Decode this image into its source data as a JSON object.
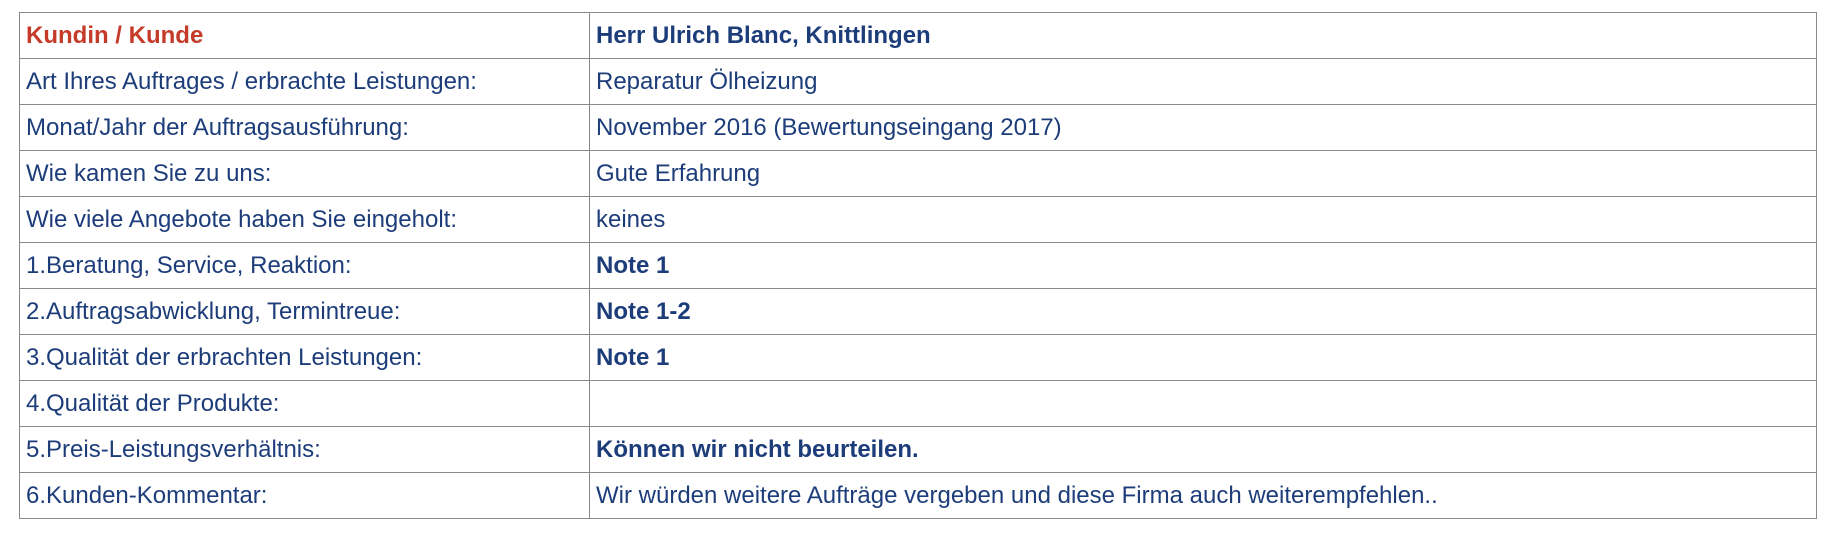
{
  "header": {
    "label": "Kundin / Kunde",
    "value": "Herr Ulrich Blanc, Knittlingen"
  },
  "rows": [
    {
      "label": "Art Ihres Auftrages / erbrachte Leistungen:",
      "value": "Reparatur Ölheizung"
    },
    {
      "label": "Monat/Jahr der Auftragsausführung:",
      "value": "November 2016  (Bewertungseingang 2017)"
    },
    {
      "label": "Wie kamen Sie zu uns:",
      "value": "Gute Erfahrung"
    },
    {
      "label": "Wie viele Angebote haben Sie eingeholt:",
      "value": "keines"
    },
    {
      "label": "1.Beratung, Service, Reaktion:",
      "value": "Note 1"
    },
    {
      "label": "2.Auftragsabwicklung, Termintreue:",
      "value": "Note 1-2"
    },
    {
      "label": "3.Qualität der erbrachten Leistungen:",
      "value": "Note 1"
    },
    {
      "label": "4.Qualität der Produkte:",
      "value": ""
    },
    {
      "label": "5.Preis-Leistungsverhältnis:",
      "value": "Können wir nicht beurteilen."
    },
    {
      "label": "6.Kunden-Kommentar:",
      "value": "Wir würden weitere Aufträge vergeben und diese Firma auch weiterempfehlen.."
    }
  ],
  "colors": {
    "text": "#1d3d7a",
    "header_label": "#c43b29",
    "border": "#8a8a8a"
  }
}
